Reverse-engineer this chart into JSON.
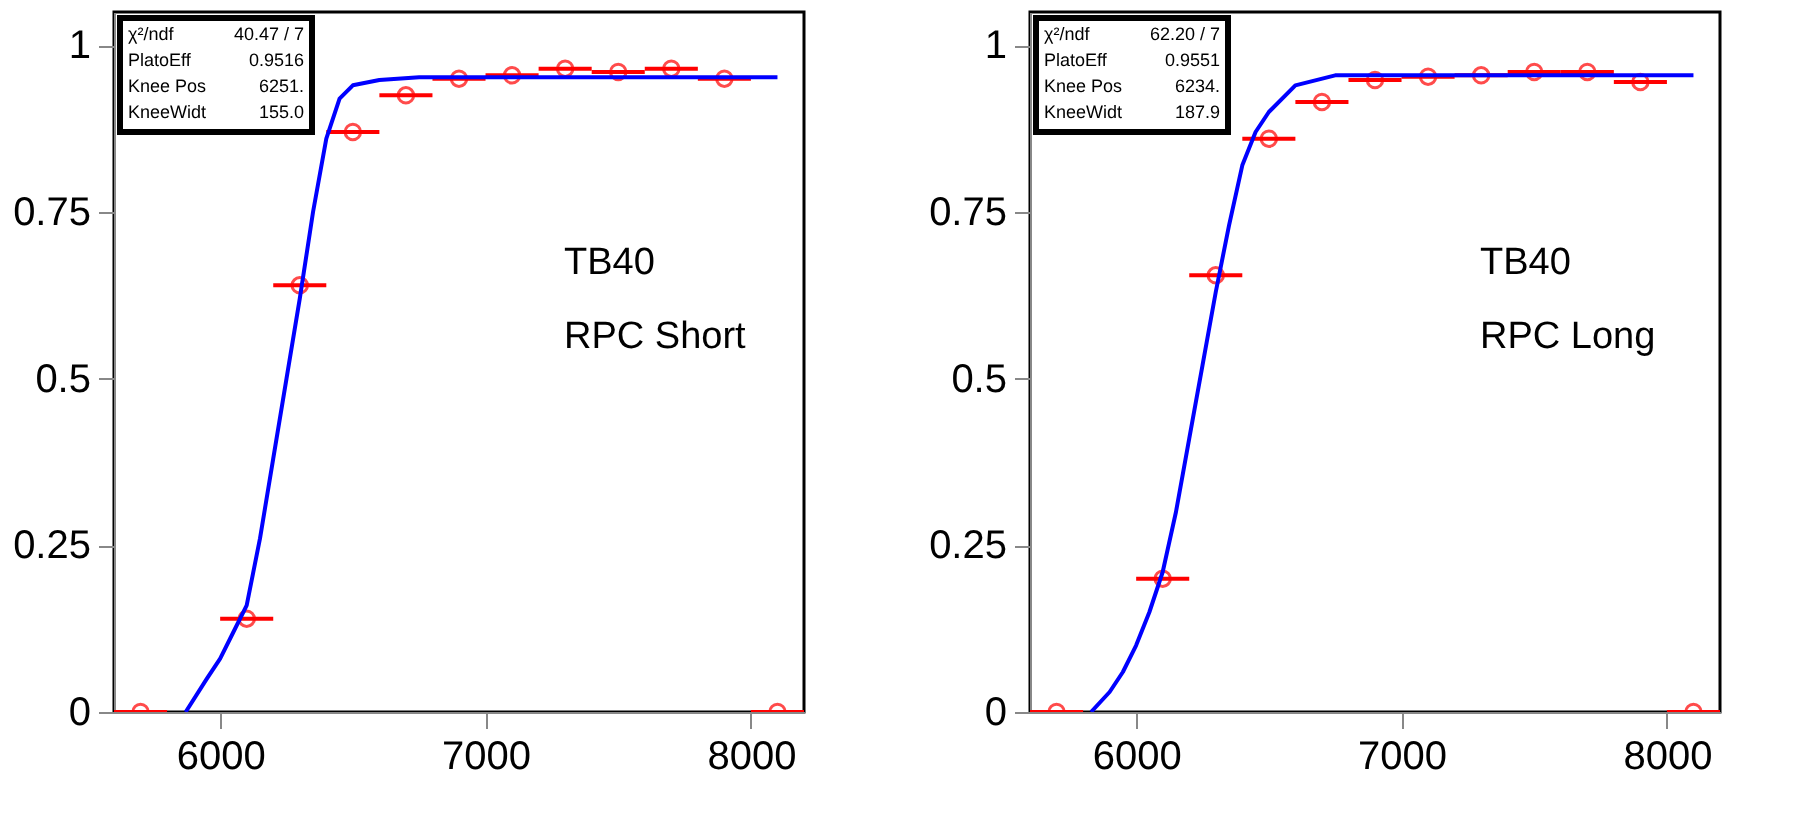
{
  "chart_data": [
    {
      "type": "scatter",
      "xlim": [
        5600,
        8200
      ],
      "ylim": [
        0,
        1.05
      ],
      "xticks": [
        6000,
        7000,
        8000
      ],
      "yticks": [
        0,
        0.25,
        0.5,
        0.75,
        1
      ],
      "annotations": [
        "χ²/ndf   40.47   /   7",
        "PlatoEff   0.9516",
        "Knee Pos   6251.",
        "KneeWidt   155.0",
        "TB40",
        "RPC Short"
      ],
      "series": [
        {
          "marker": "circle",
          "color": "#ff0000",
          "x": [
            5700,
            6100,
            6300,
            6500,
            6700,
            6900,
            7100,
            7300,
            7500,
            7700,
            7900,
            8100
          ],
          "values": [
            0,
            0.14,
            0.64,
            0.87,
            0.925,
            0.95,
            0.955,
            0.965,
            0.96,
            0.965,
            0.95,
            0
          ],
          "xerrors": [
            100,
            100,
            100,
            100,
            100,
            100,
            100,
            100,
            100,
            100,
            100,
            100
          ]
        },
        {
          "type": "line",
          "color": "#0000ff",
          "x": [
            5870,
            5950,
            6000,
            6050,
            6100,
            6150,
            6200,
            6250,
            6300,
            6350,
            6400,
            6450,
            6500,
            6600,
            6750,
            8100
          ],
          "values": [
            0,
            0.05,
            0.08,
            0.12,
            0.16,
            0.26,
            0.38,
            0.5,
            0.62,
            0.75,
            0.86,
            0.92,
            0.94,
            0.948,
            0.952,
            0.952
          ]
        }
      ]
    },
    {
      "type": "scatter",
      "xlim": [
        5600,
        8200
      ],
      "ylim": [
        0,
        1.05
      ],
      "xticks": [
        6000,
        7000,
        8000
      ],
      "yticks": [
        0,
        0.25,
        0.5,
        0.75,
        1
      ],
      "annotations": [
        "χ²/ndf   62.20   /   7",
        "PlatoEff   0.9551",
        "Knee Pos   6234.",
        "KneeWidt   187.9",
        "TB40",
        "RPC Long"
      ],
      "series": [
        {
          "marker": "circle",
          "color": "#ff0000",
          "x": [
            5700,
            6100,
            6300,
            6500,
            6700,
            6900,
            7100,
            7300,
            7500,
            7700,
            7900,
            8100
          ],
          "values": [
            0,
            0.2,
            0.655,
            0.86,
            0.915,
            0.948,
            0.953,
            0.955,
            0.96,
            0.96,
            0.945,
            0
          ],
          "xerrors": [
            100,
            100,
            100,
            100,
            100,
            100,
            100,
            100,
            100,
            100,
            100,
            100
          ]
        },
        {
          "type": "line",
          "color": "#0000ff",
          "x": [
            5830,
            5900,
            5950,
            6000,
            6050,
            6100,
            6150,
            6200,
            6250,
            6300,
            6350,
            6400,
            6450,
            6500,
            6600,
            6750,
            8100
          ],
          "values": [
            0,
            0.03,
            0.06,
            0.1,
            0.15,
            0.21,
            0.3,
            0.41,
            0.52,
            0.63,
            0.73,
            0.82,
            0.87,
            0.9,
            0.94,
            0.955,
            0.955
          ]
        }
      ]
    }
  ]
}
